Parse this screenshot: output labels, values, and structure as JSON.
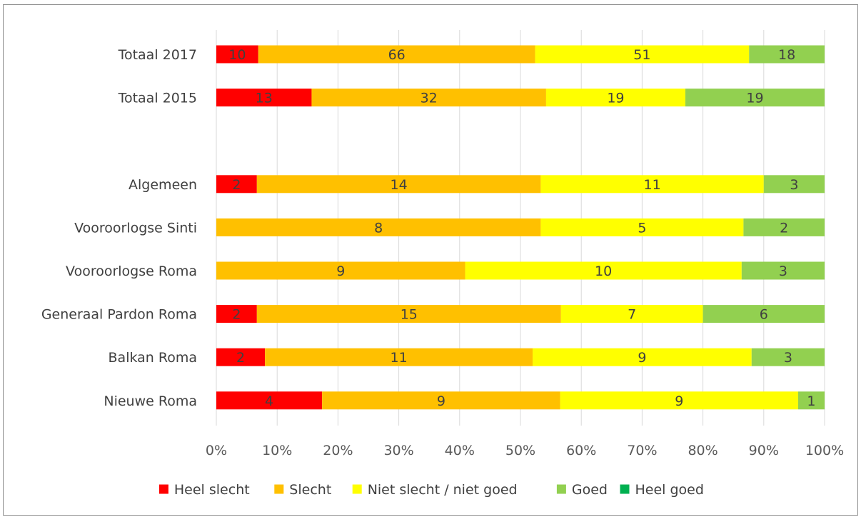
{
  "chart_data": {
    "type": "bar",
    "orientation": "horizontal",
    "stacking": "percent",
    "categories": [
      "Totaal 2017",
      "Totaal 2015",
      "",
      "Algemeen",
      "Vooroorlogse Sinti",
      "Vooroorlogse Roma",
      "Generaal Pardon Roma",
      "Balkan Roma",
      "Nieuwe Roma"
    ],
    "series": [
      {
        "name": "Heel slecht",
        "color": "#ff0000",
        "values": [
          10,
          13,
          null,
          2,
          null,
          null,
          2,
          2,
          4
        ]
      },
      {
        "name": "Slecht",
        "color": "#ffc000",
        "values": [
          66,
          32,
          null,
          14,
          8,
          9,
          15,
          11,
          9
        ]
      },
      {
        "name": "Niet slecht / niet goed",
        "color": "#ffff00",
        "values": [
          51,
          19,
          null,
          11,
          5,
          10,
          7,
          9,
          9
        ]
      },
      {
        "name": "Goed",
        "color": "#92d050",
        "values": [
          18,
          19,
          null,
          3,
          2,
          3,
          6,
          3,
          1
        ]
      },
      {
        "name": "Heel goed",
        "color": "#00b050",
        "values": [
          null,
          null,
          null,
          null,
          null,
          null,
          null,
          null,
          null
        ]
      }
    ],
    "x_ticks": [
      "0%",
      "10%",
      "20%",
      "30%",
      "40%",
      "50%",
      "60%",
      "70%",
      "80%",
      "90%",
      "100%"
    ],
    "xlim": [
      0,
      100
    ],
    "grid": true,
    "legend_position": "bottom",
    "title": "",
    "xlabel": "",
    "ylabel": ""
  }
}
